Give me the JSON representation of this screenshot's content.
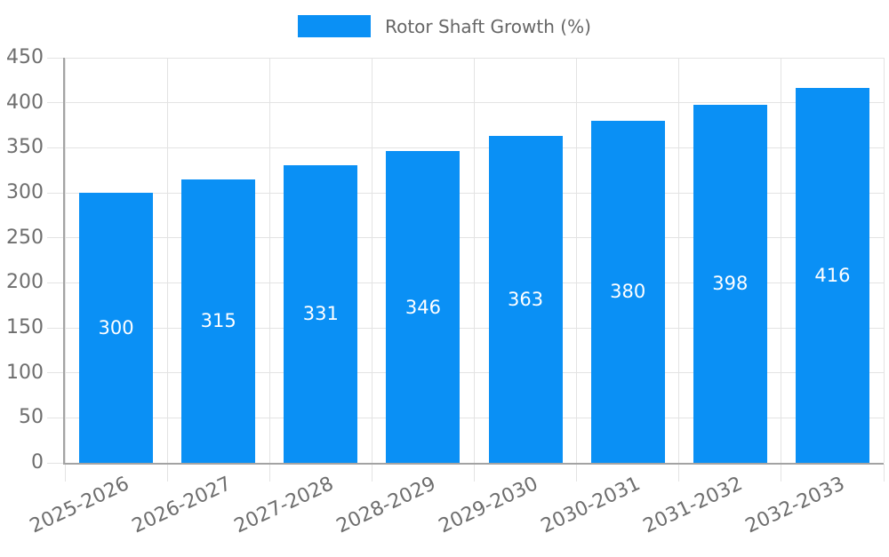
{
  "chart_data": {
    "type": "bar",
    "title": "",
    "legend_position": "top",
    "categories": [
      "2025-2026",
      "2026-2027",
      "2027-2028",
      "2028-2029",
      "2029-2030",
      "2030-2031",
      "2031-2032",
      "2032-2033"
    ],
    "series": [
      {
        "name": "Rotor Shaft Growth (%)",
        "color": "#0a90f5",
        "values": [
          300,
          315,
          331,
          346,
          363,
          380,
          398,
          416
        ]
      }
    ],
    "value_labels": [
      300,
      315,
      331,
      346,
      363,
      380,
      398,
      416
    ],
    "value_label_position": "inside-middle",
    "xlabel": "",
    "ylabel": "",
    "ylim": [
      0,
      450
    ],
    "yticks": [
      0,
      50,
      100,
      150,
      200,
      250,
      300,
      350,
      400,
      450
    ],
    "grid": true,
    "colors": {
      "bar": "#0a90f5",
      "grid": "#e3e3e3",
      "axis": "#a3a3a3",
      "tick_text": "#6e6e6e",
      "legend_text": "#666666",
      "value_label": "#ffffff",
      "background": "#ffffff"
    }
  }
}
